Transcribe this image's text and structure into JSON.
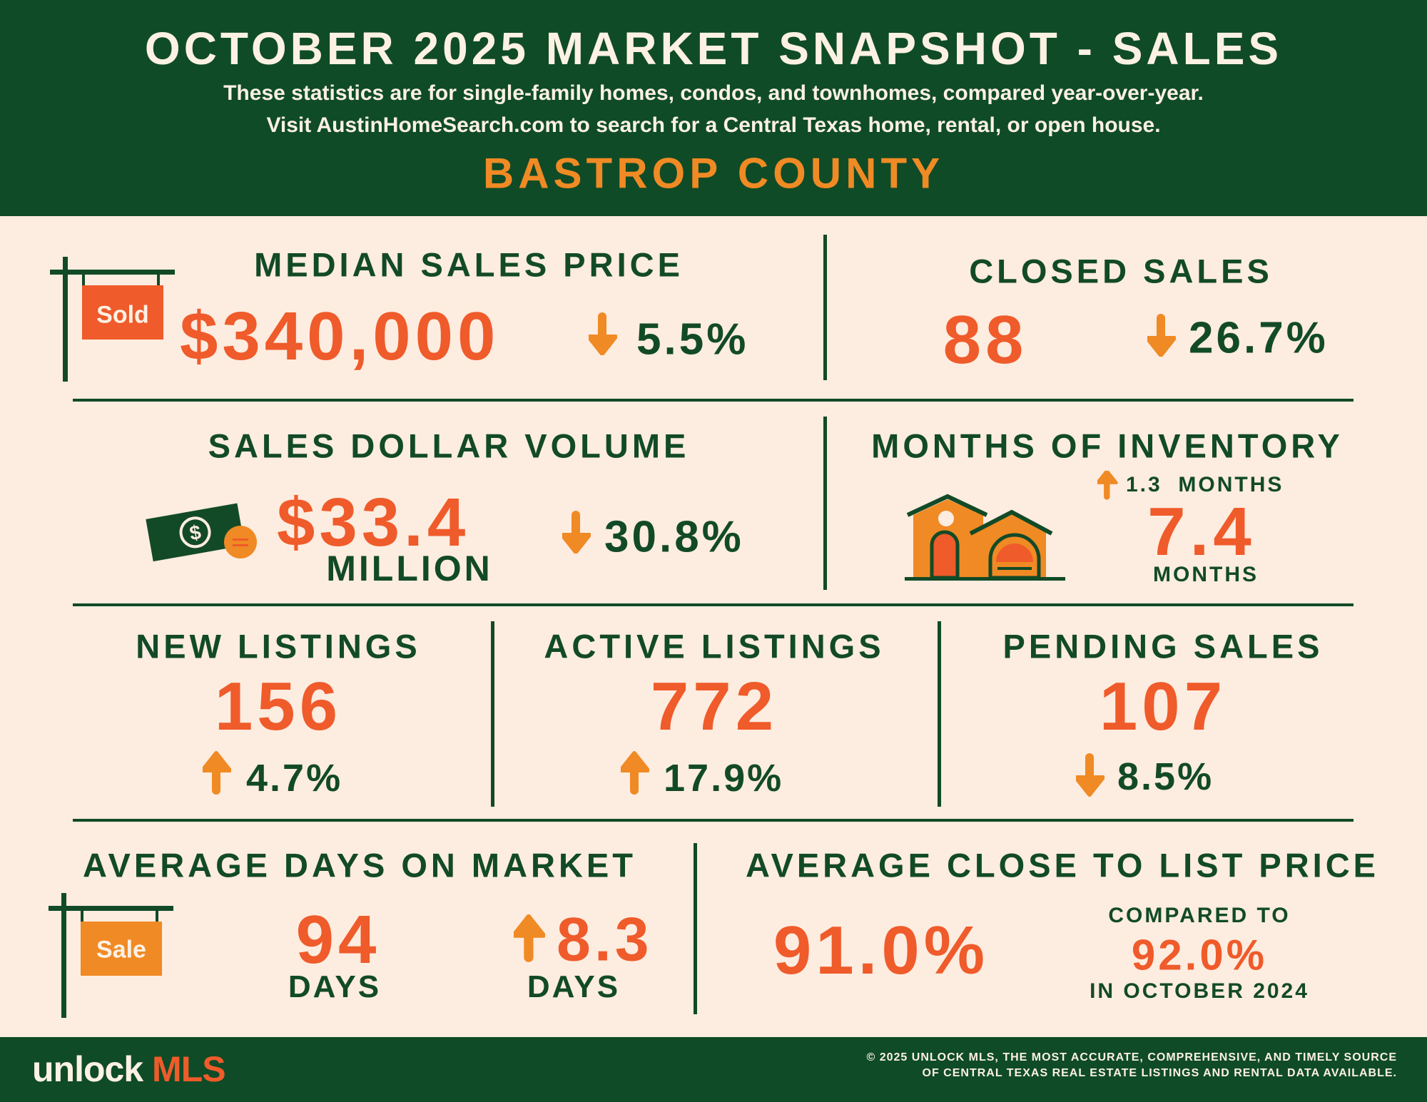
{
  "header": {
    "title": "OCTOBER 2025 MARKET SNAPSHOT - SALES",
    "subtitle_1": "These statistics are for single-family homes, condos, and townhomes, compared year-over-year.",
    "subtitle_2": "Visit AustinHomeSearch.com to search for a Central Texas home, rental, or open house.",
    "region": "BASTROP COUNTY"
  },
  "colors": {
    "green": "#0f4b27",
    "cream": "#fdece0",
    "red_orange": "#ef5b2a",
    "orange": "#f08a24"
  },
  "median_sales_price": {
    "title": "MEDIAN SALES PRICE",
    "value": "$340,000",
    "change": "5.5%",
    "direction": "down",
    "sign_text": "Sold",
    "icon": "sold-sign-icon"
  },
  "closed_sales": {
    "title": "CLOSED SALES",
    "value": "88",
    "change": "26.7%",
    "direction": "down"
  },
  "sales_dollar_volume": {
    "title": "SALES DOLLAR VOLUME",
    "value": "$33.4",
    "unit": "MILLION",
    "change": "30.8%",
    "direction": "down",
    "icon": "money-icon"
  },
  "months_of_inventory": {
    "title": "MONTHS OF INVENTORY",
    "change": "1.3  MONTHS",
    "direction": "up",
    "value": "7.4",
    "unit": "MONTHS",
    "icon": "house-icon"
  },
  "new_listings": {
    "title": "NEW LISTINGS",
    "value": "156",
    "change": "4.7%",
    "direction": "up"
  },
  "active_listings": {
    "title": "ACTIVE LISTINGS",
    "value": "772",
    "change": "17.9%",
    "direction": "up"
  },
  "pending_sales": {
    "title": "PENDING SALES",
    "value": "107",
    "change": "8.5%",
    "direction": "down"
  },
  "avg_days_on_market": {
    "title": "AVERAGE DAYS ON MARKET",
    "value": "94",
    "unit": "DAYS",
    "change": "8.3",
    "change_unit": "DAYS",
    "direction": "up",
    "sign_text": "Sale",
    "icon": "sale-sign-icon"
  },
  "avg_close_to_list": {
    "title": "AVERAGE CLOSE TO LIST PRICE",
    "value": "91.0%",
    "compared_label": "COMPARED TO",
    "compared_value": "92.0%",
    "compared_period": "IN OCTOBER 2024"
  },
  "footer": {
    "logo_unlock": "unlock",
    "logo_mls": "MLS",
    "copyright_1": "© 2025 UNLOCK MLS, THE MOST ACCURATE, COMPREHENSIVE, AND TIMELY SOURCE",
    "copyright_2": "OF CENTRAL TEXAS REAL ESTATE LISTINGS AND RENTAL DATA AVAILABLE."
  }
}
